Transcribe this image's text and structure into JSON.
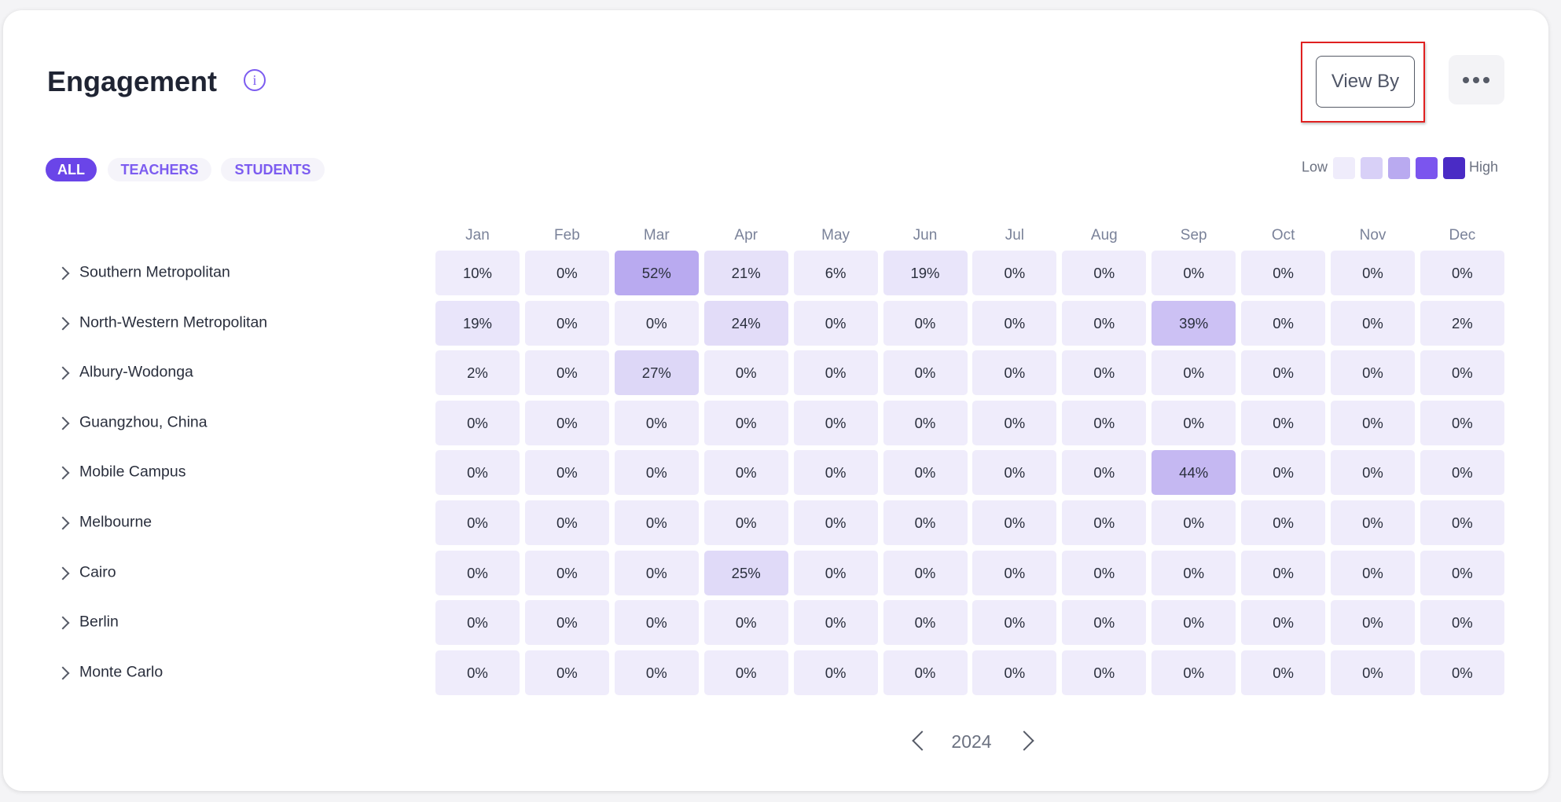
{
  "header": {
    "title": "Engagement",
    "view_by": "View By"
  },
  "filters": [
    "ALL",
    "TEACHERS",
    "STUDENTS"
  ],
  "legend": {
    "low": "Low",
    "high": "High",
    "colors": [
      "#efecfb",
      "#d8d0f7",
      "#b9aaf0",
      "#7b55ee",
      "#4a2bc5"
    ]
  },
  "table": {
    "columns": [
      "Jan",
      "Feb",
      "Mar",
      "Apr",
      "May",
      "Jun",
      "Jul",
      "Aug",
      "Sep",
      "Oct",
      "Nov",
      "Dec"
    ],
    "rows": [
      {
        "label": "Southern Metropolitan",
        "cells": [
          "10%",
          "0%",
          "52%",
          "21%",
          "6%",
          "19%",
          "0%",
          "0%",
          "0%",
          "0%",
          "0%",
          "0%"
        ]
      },
      {
        "label": "North-Western Metropolitan",
        "cells": [
          "19%",
          "0%",
          "0%",
          "24%",
          "0%",
          "0%",
          "0%",
          "0%",
          "39%",
          "0%",
          "0%",
          "2%"
        ]
      },
      {
        "label": "Albury-Wodonga",
        "cells": [
          "2%",
          "0%",
          "27%",
          "0%",
          "0%",
          "0%",
          "0%",
          "0%",
          "0%",
          "0%",
          "0%",
          "0%"
        ]
      },
      {
        "label": "Guangzhou, China",
        "cells": [
          "0%",
          "0%",
          "0%",
          "0%",
          "0%",
          "0%",
          "0%",
          "0%",
          "0%",
          "0%",
          "0%",
          "0%"
        ]
      },
      {
        "label": "Mobile Campus",
        "cells": [
          "0%",
          "0%",
          "0%",
          "0%",
          "0%",
          "0%",
          "0%",
          "0%",
          "44%",
          "0%",
          "0%",
          "0%"
        ]
      },
      {
        "label": "Melbourne",
        "cells": [
          "0%",
          "0%",
          "0%",
          "0%",
          "0%",
          "0%",
          "0%",
          "0%",
          "0%",
          "0%",
          "0%",
          "0%"
        ]
      },
      {
        "label": "Cairo",
        "cells": [
          "0%",
          "0%",
          "0%",
          "25%",
          "0%",
          "0%",
          "0%",
          "0%",
          "0%",
          "0%",
          "0%",
          "0%"
        ]
      },
      {
        "label": "Berlin",
        "cells": [
          "0%",
          "0%",
          "0%",
          "0%",
          "0%",
          "0%",
          "0%",
          "0%",
          "0%",
          "0%",
          "0%",
          "0%"
        ]
      },
      {
        "label": "Monte Carlo",
        "cells": [
          "0%",
          "0%",
          "0%",
          "0%",
          "0%",
          "0%",
          "0%",
          "0%",
          "0%",
          "0%",
          "0%",
          "0%"
        ]
      }
    ]
  },
  "pager": {
    "year": "2024"
  }
}
